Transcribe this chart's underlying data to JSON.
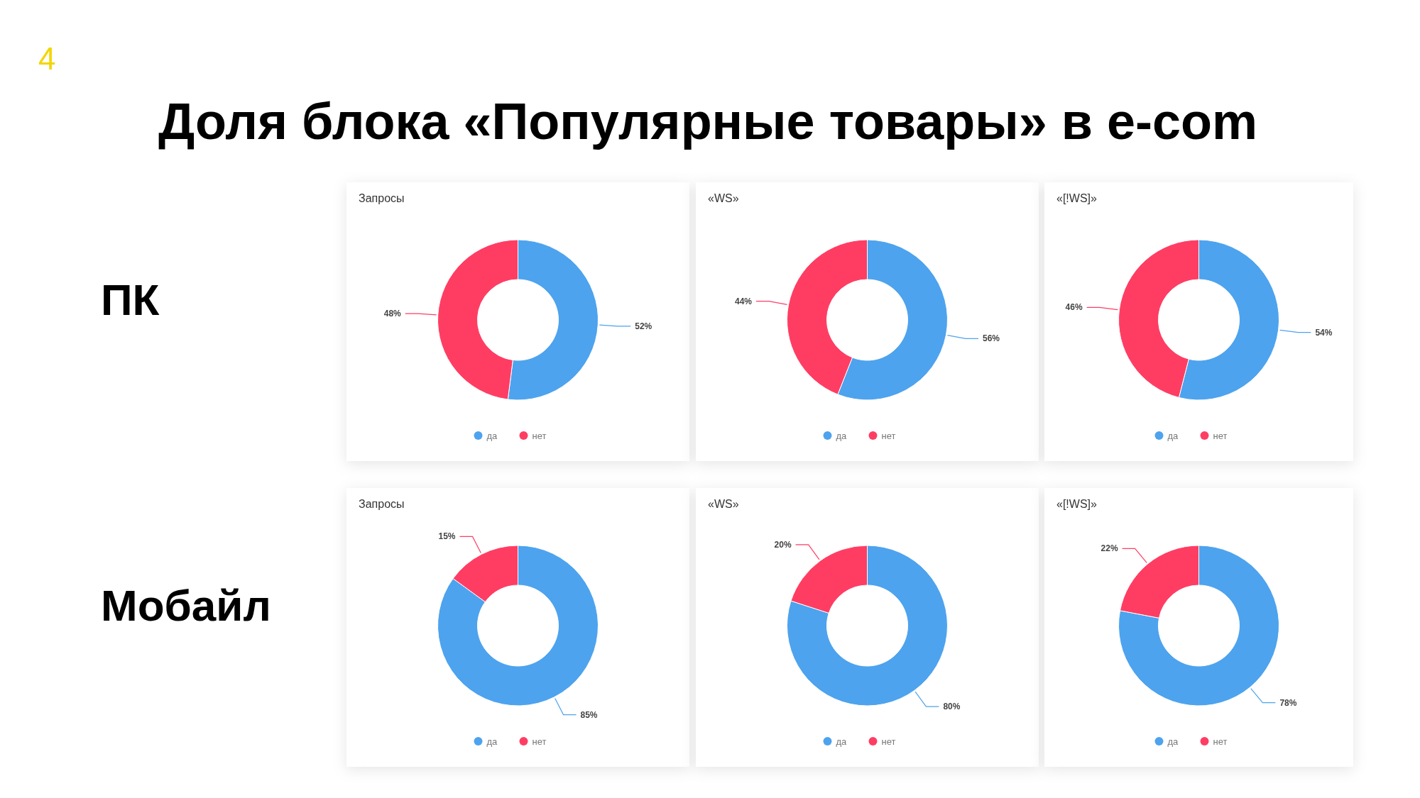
{
  "chart_data": [
    {
      "type": "other",
      "title": "Доля блока «Популярные товары» в e-com",
      "annotations": [
        "4",
        "ПК",
        "Мобайл"
      ]
    },
    {
      "type": "donut",
      "title": "Запросы",
      "categories": [
        "да",
        "нет"
      ],
      "values": [
        52,
        48
      ],
      "value_labels": [
        "52%",
        "48%"
      ],
      "colors": [
        "#4da3ee",
        "#ff3d63"
      ],
      "legend": "bottom"
    },
    {
      "type": "donut",
      "title": "«WS»",
      "categories": [
        "да",
        "нет"
      ],
      "values": [
        56,
        44
      ],
      "value_labels": [
        "56%",
        "44%"
      ],
      "colors": [
        "#4da3ee",
        "#ff3d63"
      ],
      "legend": "bottom"
    },
    {
      "type": "donut",
      "title": "«[!WS]»",
      "categories": [
        "да",
        "нет"
      ],
      "values": [
        54,
        46
      ],
      "value_labels": [
        "54%",
        "46%"
      ],
      "colors": [
        "#4da3ee",
        "#ff3d63"
      ],
      "legend": "bottom"
    },
    {
      "type": "donut",
      "title": "Запросы",
      "categories": [
        "да",
        "нет"
      ],
      "values": [
        85,
        15
      ],
      "value_labels": [
        "85%",
        "15%"
      ],
      "colors": [
        "#4da3ee",
        "#ff3d63"
      ],
      "legend": "bottom"
    },
    {
      "type": "donut",
      "title": "«WS»",
      "categories": [
        "да",
        "нет"
      ],
      "values": [
        80,
        20
      ],
      "value_labels": [
        "80%",
        "20%"
      ],
      "colors": [
        "#4da3ee",
        "#ff3d63"
      ],
      "legend": "bottom"
    },
    {
      "type": "donut",
      "title": "«[!WS]»",
      "categories": [
        "да",
        "нет"
      ],
      "values": [
        78,
        22
      ],
      "value_labels": [
        "78%",
        "22%"
      ],
      "colors": [
        "#4da3ee",
        "#ff3d63"
      ],
      "legend": "bottom"
    }
  ]
}
